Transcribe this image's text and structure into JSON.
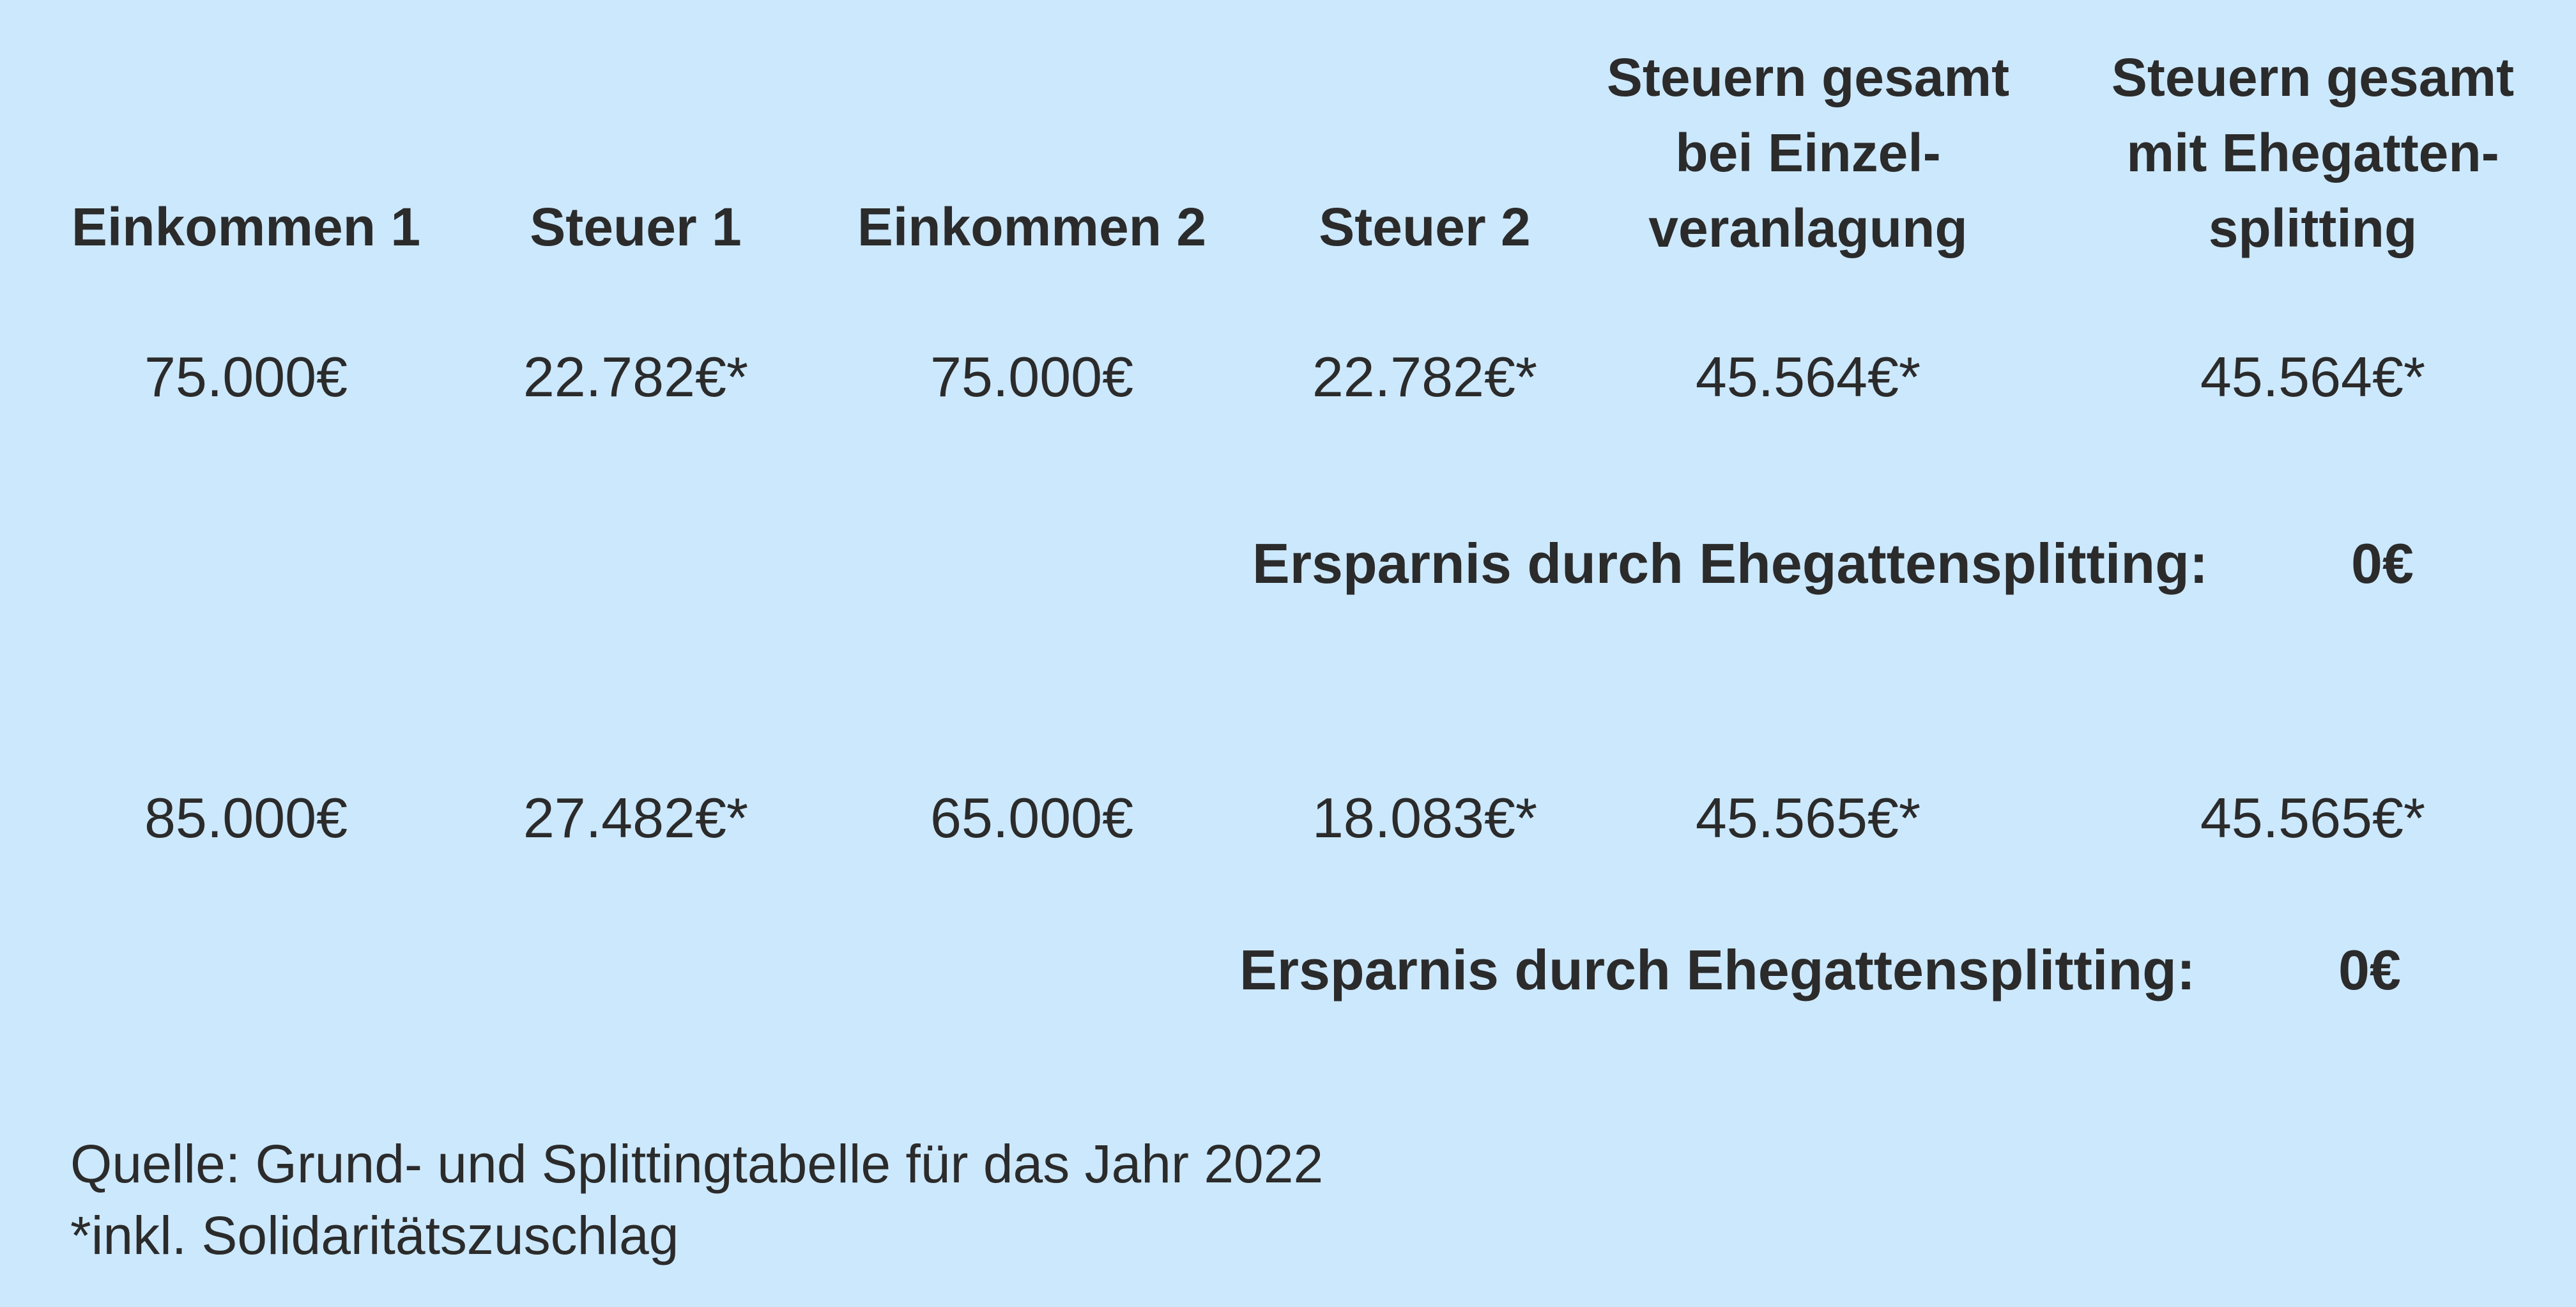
{
  "table": {
    "headers": [
      "Einkommen 1",
      "Steuer 1",
      "Einkommen 2",
      "Steuer 2",
      "Steuern gesamt bei Einzel-veranlagung",
      "Steuern gesamt mit Ehegatten-splitting"
    ],
    "header_lines": {
      "col5": [
        "Steuern gesamt",
        "bei Einzel-",
        "veranlagung"
      ],
      "col6": [
        "Steuern gesamt",
        "mit Ehegatten-",
        "splitting"
      ]
    },
    "rows": [
      {
        "cells": [
          "75.000€",
          "22.782€*",
          "75.000€",
          "22.782€*",
          "45.564€*",
          "45.564€*"
        ],
        "savings_label": "Ersparnis durch Ehegattensplitting:",
        "savings_value": "0€"
      },
      {
        "cells": [
          "85.000€",
          "27.482€*",
          "65.000€",
          "18.083€*",
          "45.565€*",
          "45.565€*"
        ],
        "savings_label": "Ersparnis durch Ehegattensplitting:",
        "savings_value": "0€"
      }
    ]
  },
  "footer": {
    "source": "Quelle: Grund- und Splittingtabelle für das Jahr 2022",
    "note": "*inkl. Solidaritätszuschlag"
  },
  "colors": {
    "background": "#cce8fd",
    "text": "#2b2b2b"
  }
}
